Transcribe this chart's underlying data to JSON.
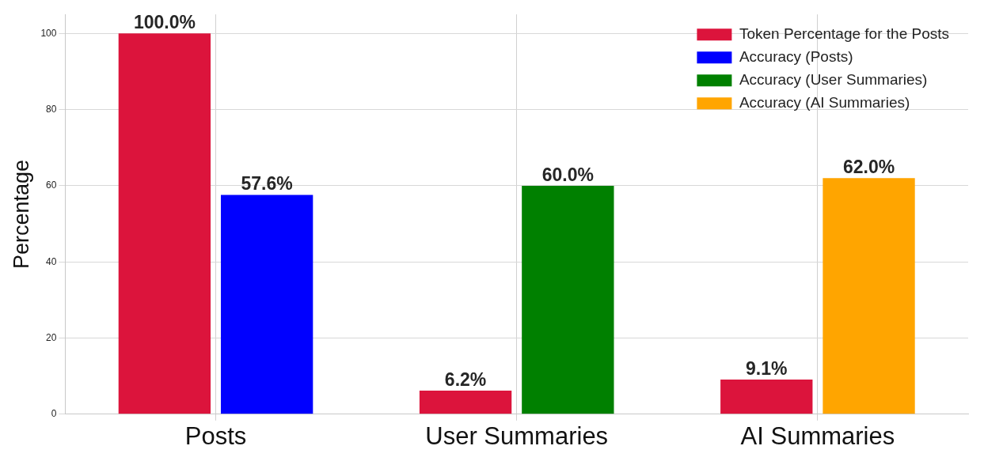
{
  "chart_data": {
    "type": "bar",
    "ylabel": "Percentage",
    "categories": [
      "Posts",
      "User Summaries",
      "AI Summaries"
    ],
    "series": [
      {
        "name": "Token Percentage for the Posts",
        "color": "#dc143c",
        "values": [
          100,
          6.2,
          9.1
        ],
        "value_labels": [
          "100.0%",
          "6.2%",
          "9.1%"
        ]
      },
      {
        "name": "Accuracy (Posts)",
        "color": "#0000ff",
        "values": [
          57.6,
          null,
          null
        ],
        "value_labels": [
          "57.6%",
          null,
          null
        ]
      },
      {
        "name": "Accuracy (User Summaries)",
        "color": "#008000",
        "values": [
          null,
          60.0,
          null
        ],
        "value_labels": [
          null,
          "60.0%",
          null
        ]
      },
      {
        "name": "Accuracy (AI Summaries)",
        "color": "#ffa500",
        "values": [
          null,
          null,
          62.0
        ],
        "value_labels": [
          null,
          null,
          "62.0%"
        ]
      }
    ],
    "ylim": [
      0,
      105
    ],
    "yticks": [
      0,
      20,
      40,
      60,
      80,
      100
    ],
    "grid": true,
    "legend": "top right"
  }
}
